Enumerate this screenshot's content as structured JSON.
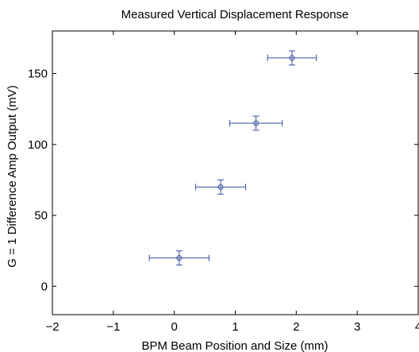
{
  "chart_data": {
    "type": "scatter",
    "title": "Measured Vertical Displacement Response",
    "xlabel": "BPM Beam Position and Size (mm)",
    "ylabel": "G = 1 Difference Amp Output (mV)",
    "xlim": [
      -2,
      4
    ],
    "ylim": [
      -20,
      180
    ],
    "xticks": [
      -2,
      -1,
      0,
      1,
      2,
      3,
      4
    ],
    "yticks": [
      0,
      50,
      100,
      150
    ],
    "grid": false,
    "marker": "circle",
    "series_color": "#3a4fa0",
    "points": [
      {
        "x": 0.08,
        "y": 20,
        "xerr": 0.49,
        "yerr": 5
      },
      {
        "x": 0.76,
        "y": 70,
        "xerr": 0.41,
        "yerr": 5
      },
      {
        "x": 1.34,
        "y": 115,
        "xerr": 0.43,
        "yerr": 5
      },
      {
        "x": 1.93,
        "y": 161,
        "xerr": 0.4,
        "yerr": 5
      }
    ]
  }
}
